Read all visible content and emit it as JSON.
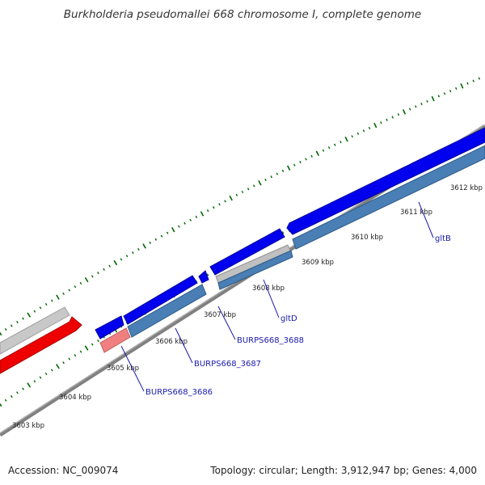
{
  "title": "Burkholderia pseudomallei 668 chromosome I, complete genome",
  "footer": {
    "accession": "Accession: NC_009074",
    "summary": "Topology: circular; Length: 3,912,947 bp; Genes: 4,000"
  },
  "colors": {
    "backbone": "#808080",
    "forward_gene": "#0000ee",
    "reverse_gene": "#4a7fb5",
    "rna_gene": "#c0c0c0",
    "feature_red": "#ee0000",
    "feature_pink": "#f08080",
    "label": "#1a1aaa",
    "tick": "#006600"
  },
  "ruler": [
    {
      "label": "3603 kbp"
    },
    {
      "label": "3604 kbp"
    },
    {
      "label": "3605 kbp"
    },
    {
      "label": "3606 kbp"
    },
    {
      "label": "3607 kbp"
    },
    {
      "label": "3608 kbp"
    },
    {
      "label": "3609 kbp"
    },
    {
      "label": "3610 kbp"
    },
    {
      "label": "3611 kbp"
    },
    {
      "label": "3612 kbp"
    }
  ],
  "gene_labels": [
    {
      "name": "BURPS668_3686"
    },
    {
      "name": "BURPS668_3687"
    },
    {
      "name": "BURPS668_3688"
    },
    {
      "name": "gltD"
    },
    {
      "name": "gltB"
    }
  ]
}
